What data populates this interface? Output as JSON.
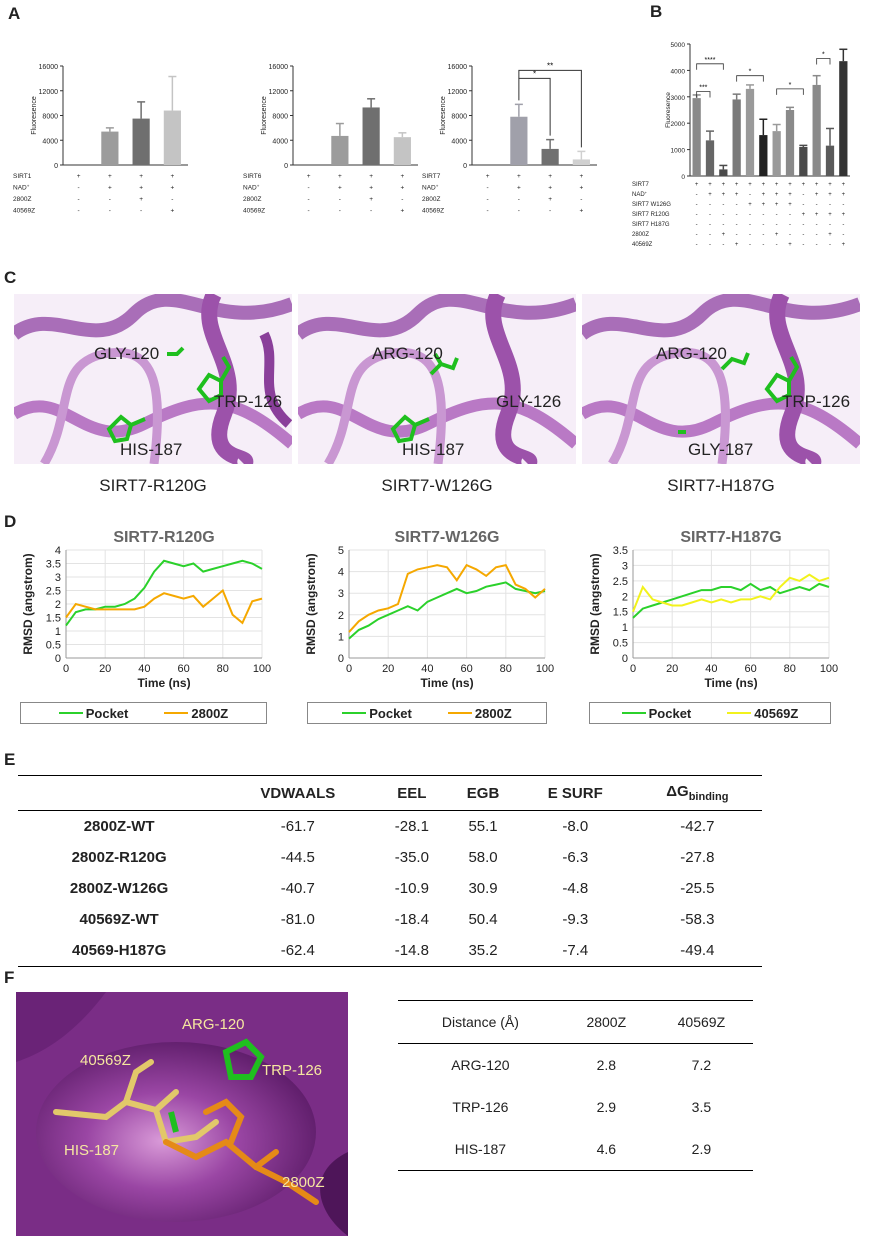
{
  "panels": {
    "A": "A",
    "B": "B",
    "C": "C",
    "D": "D",
    "E": "E",
    "F": "F"
  },
  "colors": {
    "green": "#2bd12b",
    "orange": "#f5a800",
    "yellow": "#f2f21c",
    "bar_dark": "#5a5a5a",
    "bar_mid": "#8d8d8d",
    "bar_light": "#c4c4c4",
    "ribbon": "#b876c4",
    "surface": "#7a2d86"
  },
  "panelA": {
    "ylabel": "Fluoresence",
    "charts": [
      {
        "enzyme": "SIRT1",
        "row_labels": [
          "SIRT1",
          "NAD+",
          "2800Z",
          "40569Z"
        ],
        "signs": [
          [
            "+",
            "+",
            "+",
            "+"
          ],
          [
            "-",
            "+",
            "+",
            "+"
          ],
          [
            "-",
            "-",
            "+",
            "-"
          ],
          [
            "-",
            "-",
            "-",
            "+"
          ]
        ],
        "stars": []
      },
      {
        "enzyme": "SIRT6",
        "row_labels": [
          "SIRT6",
          "NAD+",
          "2800Z",
          "40569Z"
        ],
        "signs": [
          [
            "+",
            "+",
            "+",
            "+"
          ],
          [
            "-",
            "+",
            "+",
            "+"
          ],
          [
            "-",
            "-",
            "+",
            "-"
          ],
          [
            "-",
            "-",
            "-",
            "+"
          ]
        ],
        "stars": []
      },
      {
        "enzyme": "SIRT7",
        "row_labels": [
          "SIRT7",
          "NAD+",
          "2800Z",
          "40569Z"
        ],
        "signs": [
          [
            "+",
            "+",
            "+",
            "+"
          ],
          [
            "-",
            "+",
            "+",
            "+"
          ],
          [
            "-",
            "-",
            "+",
            "-"
          ],
          [
            "-",
            "-",
            "-",
            "+"
          ]
        ],
        "stars": [
          "*",
          "**"
        ]
      }
    ]
  },
  "panelB": {
    "ylabel": "Fluoresence",
    "row_labels": [
      "SIRT7",
      "NAD+",
      "SIRT7 W126G",
      "SIRT7 R120G",
      "SIRT7 H187G",
      "2800Z",
      "40569Z"
    ],
    "signs": [
      [
        "+",
        "+",
        "+",
        "+",
        "+",
        "+",
        "+",
        "+",
        "+",
        "+",
        "+",
        "+"
      ],
      [
        "-",
        "+",
        "+",
        "+",
        "-",
        "+",
        "+",
        "+",
        "-",
        "+",
        "+",
        "+"
      ],
      [
        "-",
        "-",
        "-",
        "-",
        "+",
        "+",
        "+",
        "+",
        "-",
        "-",
        "-",
        "-"
      ],
      [
        "-",
        "-",
        "-",
        "-",
        "-",
        "-",
        "-",
        "-",
        "+",
        "+",
        "+",
        "+"
      ],
      [
        "-",
        "-",
        "-",
        "-",
        "-",
        "-",
        "-",
        "-",
        "-",
        "-",
        "-",
        "-"
      ],
      [
        "-",
        "-",
        "+",
        "-",
        "-",
        "-",
        "+",
        "-",
        "-",
        "-",
        "+",
        "-"
      ],
      [
        "-",
        "-",
        "-",
        "+",
        "-",
        "-",
        "-",
        "+",
        "-",
        "-",
        "-",
        "+"
      ]
    ],
    "stars": [
      "***",
      "****",
      "*",
      "*",
      "*"
    ]
  },
  "panelC": {
    "structures": [
      {
        "caption": "SIRT7-R120G",
        "residues": [
          "GLY-120",
          "TRP-126",
          "HIS-187"
        ]
      },
      {
        "caption": "SIRT7-W126G",
        "residues": [
          "ARG-120",
          "GLY-126",
          "HIS-187"
        ]
      },
      {
        "caption": "SIRT7-H187G",
        "residues": [
          "ARG-120",
          "TRP-126",
          "GLY-187"
        ]
      }
    ]
  },
  "panelD": {
    "xlabel": "Time (ns)",
    "ylabel": "RMSD (angstrom)",
    "legends": [
      {
        "a": "Pocket",
        "b": "2800Z"
      },
      {
        "a": "Pocket",
        "b": "2800Z"
      },
      {
        "a": "Pocket",
        "b": "40569Z"
      }
    ]
  },
  "chart_data": [
    {
      "type": "bar",
      "title": "",
      "xlabel": "",
      "ylabel": "Fluoresence",
      "categories": [
        "1",
        "2",
        "3",
        "4"
      ],
      "values": [
        0,
        5400,
        7500,
        8800
      ],
      "errors": [
        0,
        600,
        2700,
        5500
      ],
      "ylim": [
        0,
        16000
      ],
      "yticks": [
        0,
        4000,
        8000,
        12000,
        16000
      ]
    },
    {
      "type": "bar",
      "title": "",
      "xlabel": "",
      "ylabel": "Fluoresence",
      "categories": [
        "1",
        "2",
        "3",
        "4"
      ],
      "values": [
        0,
        4700,
        9300,
        4500
      ],
      "errors": [
        0,
        2000,
        1400,
        700
      ],
      "ylim": [
        0,
        16000
      ],
      "yticks": [
        0,
        4000,
        8000,
        12000,
        16000
      ]
    },
    {
      "type": "bar",
      "title": "",
      "xlabel": "",
      "ylabel": "Fluoresence",
      "categories": [
        "1",
        "2",
        "3",
        "4"
      ],
      "values": [
        0,
        7800,
        2600,
        900
      ],
      "errors": [
        0,
        2000,
        1500,
        1300
      ],
      "ylim": [
        0,
        16000
      ],
      "yticks": [
        0,
        4000,
        8000,
        12000,
        16000
      ]
    },
    {
      "type": "bar",
      "title": "",
      "xlabel": "",
      "ylabel": "Fluoresence",
      "categories": [
        "1",
        "2",
        "3",
        "4",
        "5",
        "6",
        "7",
        "8",
        "9",
        "10",
        "11",
        "12"
      ],
      "values": [
        2950,
        1350,
        250,
        2900,
        3300,
        1550,
        1700,
        2500,
        1100,
        3450,
        1150,
        4350
      ],
      "errors": [
        120,
        350,
        150,
        200,
        150,
        600,
        250,
        100,
        60,
        350,
        650,
        450
      ],
      "ylim": [
        0,
        5000
      ],
      "yticks": [
        0,
        1000,
        2000,
        3000,
        4000,
        5000
      ]
    },
    {
      "type": "line",
      "title": "SIRT7-R120G",
      "xlabel": "Time (ns)",
      "ylabel": "RMSD (angstrom)",
      "x": [
        0,
        5,
        10,
        15,
        20,
        25,
        30,
        35,
        40,
        45,
        50,
        55,
        60,
        65,
        70,
        75,
        80,
        85,
        90,
        95,
        100
      ],
      "series": [
        {
          "name": "Pocket",
          "values": [
            1.2,
            1.7,
            1.8,
            1.8,
            1.9,
            1.9,
            2.0,
            2.2,
            2.6,
            3.2,
            3.6,
            3.5,
            3.4,
            3.5,
            3.2,
            3.3,
            3.4,
            3.5,
            3.6,
            3.5,
            3.3
          ]
        },
        {
          "name": "2800Z",
          "values": [
            1.5,
            2.0,
            1.9,
            1.8,
            1.8,
            1.8,
            1.8,
            1.8,
            1.9,
            2.2,
            2.4,
            2.3,
            2.2,
            2.3,
            1.9,
            2.2,
            2.5,
            1.6,
            1.3,
            2.1,
            2.2
          ]
        }
      ],
      "xlim": [
        0,
        100
      ],
      "ylim": [
        0,
        4
      ],
      "yticks": [
        0,
        0.5,
        1,
        1.5,
        2,
        2.5,
        3,
        3.5,
        4
      ],
      "xticks": [
        0,
        20,
        40,
        60,
        80,
        100
      ]
    },
    {
      "type": "line",
      "title": "SIRT7-W126G",
      "xlabel": "Time (ns)",
      "ylabel": "RMSD (angstrom)",
      "x": [
        0,
        5,
        10,
        15,
        20,
        25,
        30,
        35,
        40,
        45,
        50,
        55,
        60,
        65,
        70,
        75,
        80,
        85,
        90,
        95,
        100
      ],
      "series": [
        {
          "name": "Pocket",
          "values": [
            0.9,
            1.3,
            1.5,
            1.8,
            2.0,
            2.2,
            2.4,
            2.2,
            2.6,
            2.8,
            3.0,
            3.2,
            3.0,
            3.1,
            3.3,
            3.4,
            3.5,
            3.2,
            3.1,
            3.0,
            3.1
          ]
        },
        {
          "name": "2800Z",
          "values": [
            1.2,
            1.7,
            2.0,
            2.2,
            2.3,
            2.5,
            3.9,
            4.1,
            4.2,
            4.3,
            4.2,
            3.6,
            4.3,
            4.1,
            3.8,
            4.2,
            4.3,
            3.4,
            3.2,
            2.8,
            3.2
          ]
        }
      ],
      "xlim": [
        0,
        100
      ],
      "ylim": [
        0,
        5
      ],
      "yticks": [
        0,
        1,
        2,
        3,
        4,
        5
      ],
      "xticks": [
        0,
        20,
        40,
        60,
        80,
        100
      ]
    },
    {
      "type": "line",
      "title": "SIRT7-H187G",
      "xlabel": "Time (ns)",
      "ylabel": "RMSD (angstrom)",
      "x": [
        0,
        5,
        10,
        15,
        20,
        25,
        30,
        35,
        40,
        45,
        50,
        55,
        60,
        65,
        70,
        75,
        80,
        85,
        90,
        95,
        100
      ],
      "series": [
        {
          "name": "Pocket",
          "values": [
            1.3,
            1.6,
            1.7,
            1.8,
            1.9,
            2.0,
            2.1,
            2.2,
            2.2,
            2.3,
            2.3,
            2.2,
            2.4,
            2.2,
            2.3,
            2.1,
            2.2,
            2.3,
            2.2,
            2.4,
            2.3
          ]
        },
        {
          "name": "40569Z",
          "values": [
            1.5,
            2.3,
            1.9,
            1.8,
            1.7,
            1.7,
            1.8,
            1.9,
            1.8,
            1.9,
            1.8,
            1.9,
            1.9,
            2.0,
            1.9,
            2.3,
            2.6,
            2.5,
            2.7,
            2.5,
            2.6
          ]
        }
      ],
      "xlim": [
        0,
        100
      ],
      "ylim": [
        0,
        3.5
      ],
      "yticks": [
        0,
        0.5,
        1,
        1.5,
        2,
        2.5,
        3,
        3.5
      ],
      "xticks": [
        0,
        20,
        40,
        60,
        80,
        100
      ]
    }
  ],
  "energy_table": {
    "headers": [
      "",
      "VDWAALS",
      "EEL",
      "EGB",
      "E SURF",
      "ΔG"
    ],
    "dg_subscript": "binding",
    "rows": [
      [
        "2800Z-WT",
        "-61.7",
        "-28.1",
        "55.1",
        "-8.0",
        "-42.7"
      ],
      [
        "2800Z-R120G",
        "-44.5",
        "-35.0",
        "58.0",
        "-6.3",
        "-27.8"
      ],
      [
        "2800Z-W126G",
        "-40.7",
        "-10.9",
        "30.9",
        "-4.8",
        "-25.5"
      ],
      [
        "40569Z-WT",
        "-81.0",
        "-18.4",
        "50.4",
        "-9.3",
        "-58.3"
      ],
      [
        "40569-H187G",
        "-62.4",
        "-14.8",
        "35.2",
        "-7.4",
        "-49.4"
      ]
    ]
  },
  "panelF": {
    "labels": [
      "ARG-120",
      "40569Z",
      "TRP-126",
      "HIS-187",
      "2800Z"
    ]
  },
  "distance_table": {
    "headers": [
      "Distance (Å)",
      "2800Z",
      "40569Z"
    ],
    "rows": [
      [
        "ARG-120",
        "2.8",
        "7.2"
      ],
      [
        "TRP-126",
        "2.9",
        "3.5"
      ],
      [
        "HIS-187",
        "4.6",
        "2.9"
      ]
    ]
  }
}
